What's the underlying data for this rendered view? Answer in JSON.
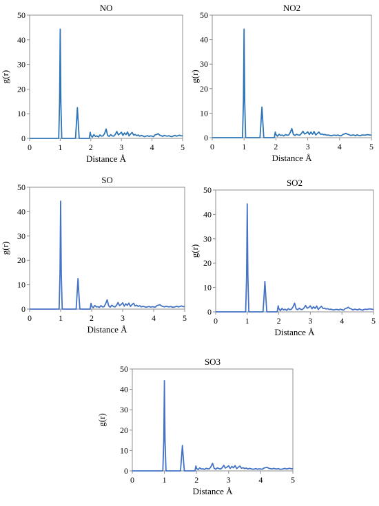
{
  "chart_data": [
    {
      "type": "line",
      "title": "NO",
      "xlabel": "Distance Å",
      "ylabel": "g(r)",
      "xlim": [
        0,
        5
      ],
      "ylim": [
        0,
        50
      ],
      "xticks": [
        "0",
        "1",
        "2",
        "3",
        "4",
        "5"
      ],
      "yticks": [
        "0",
        "10",
        "20",
        "30",
        "40",
        "50"
      ],
      "color": "#2e75b6",
      "x": [
        0,
        0.95,
        0.98,
        1.0,
        1.02,
        1.05,
        1.5,
        1.53,
        1.56,
        1.59,
        1.62,
        1.95,
        1.98,
        2.0,
        2.05,
        2.1,
        2.15,
        2.2,
        2.25,
        2.3,
        2.35,
        2.4,
        2.45,
        2.5,
        2.55,
        2.6,
        2.65,
        2.7,
        2.75,
        2.8,
        2.85,
        2.9,
        2.95,
        3.0,
        3.05,
        3.1,
        3.15,
        3.2,
        3.25,
        3.3,
        3.35,
        3.4,
        3.45,
        3.5,
        3.55,
        3.6,
        3.65,
        3.7,
        3.75,
        3.8,
        3.85,
        3.9,
        3.95,
        4.0,
        4.05,
        4.1,
        4.15,
        4.2,
        4.25,
        4.3,
        4.35,
        4.4,
        4.45,
        4.5,
        4.55,
        4.6,
        4.65,
        4.7,
        4.75,
        4.8,
        4.85,
        4.9,
        4.95,
        5.0
      ],
      "y": [
        0,
        0,
        15,
        44.3,
        15,
        0,
        0,
        6,
        12.5,
        6,
        0,
        0,
        2.5,
        1.2,
        0.5,
        1.5,
        0.8,
        1.0,
        0.6,
        1.4,
        0.9,
        1.0,
        2.0,
        3.8,
        1.2,
        0.8,
        1.5,
        1.0,
        0.9,
        1.6,
        2.8,
        1.4,
        1.9,
        2.5,
        1.2,
        2.2,
        1.5,
        2.6,
        1.0,
        1.8,
        2.4,
        1.3,
        1.6,
        1.1,
        1.4,
        0.9,
        1.2,
        1.0,
        0.7,
        0.9,
        1.1,
        0.8,
        1.0,
        0.9,
        0.7,
        1.4,
        1.6,
        1.9,
        1.3,
        1.1,
        0.8,
        1.2,
        1.0,
        0.9,
        1.1,
        0.8,
        0.7,
        1.0,
        1.2,
        0.9,
        1.1,
        1.3,
        1.0,
        1.1
      ]
    },
    {
      "type": "line",
      "title": "NO2",
      "xlabel": "Distance Å",
      "ylabel": "g(r)",
      "xlim": [
        0,
        5
      ],
      "ylim": [
        0,
        50
      ],
      "xticks": [
        "0",
        "1",
        "2",
        "3",
        "4",
        "5"
      ],
      "yticks": [
        "0",
        "10",
        "20",
        "30",
        "40",
        "50"
      ],
      "color": "#2e75b6",
      "x": [
        0,
        0.95,
        0.98,
        1.0,
        1.02,
        1.05,
        1.5,
        1.53,
        1.56,
        1.59,
        1.62,
        1.95,
        1.98,
        2.0,
        2.05,
        2.1,
        2.15,
        2.2,
        2.25,
        2.3,
        2.35,
        2.4,
        2.45,
        2.5,
        2.55,
        2.6,
        2.65,
        2.7,
        2.75,
        2.8,
        2.85,
        2.9,
        2.95,
        3.0,
        3.05,
        3.1,
        3.15,
        3.2,
        3.25,
        3.3,
        3.35,
        3.4,
        3.45,
        3.5,
        3.55,
        3.6,
        3.65,
        3.7,
        3.75,
        3.8,
        3.85,
        3.9,
        3.95,
        4.0,
        4.05,
        4.1,
        4.15,
        4.2,
        4.25,
        4.3,
        4.35,
        4.4,
        4.45,
        4.5,
        4.55,
        4.6,
        4.65,
        4.7,
        4.75,
        4.8,
        4.85,
        4.9,
        4.95,
        5.0
      ],
      "y": [
        0,
        0,
        15,
        44.3,
        15,
        0,
        0,
        6,
        12.5,
        6,
        0,
        0,
        2.3,
        1.3,
        0.6,
        1.4,
        0.9,
        1.1,
        0.7,
        1.3,
        1.0,
        1.1,
        2.1,
        3.7,
        1.3,
        0.9,
        1.4,
        1.1,
        1.0,
        1.7,
        2.6,
        1.5,
        1.8,
        2.4,
        1.3,
        2.3,
        1.4,
        2.5,
        1.1,
        1.7,
        2.3,
        1.4,
        1.5,
        1.2,
        1.3,
        1.0,
        1.1,
        0.9,
        0.8,
        1.0,
        1.0,
        0.9,
        1.1,
        0.8,
        0.8,
        1.3,
        1.5,
        1.8,
        1.4,
        1.2,
        0.9,
        1.1,
        1.1,
        0.8,
        1.2,
        0.9,
        0.8,
        1.1,
        1.1,
        1.0,
        1.2,
        1.2,
        1.1,
        1.0
      ]
    },
    {
      "type": "line",
      "title": "SO",
      "xlabel": "Distance Å",
      "ylabel": "g(r)",
      "xlim": [
        0,
        5
      ],
      "ylim": [
        0,
        50
      ],
      "xticks": [
        "0",
        "1",
        "2",
        "3",
        "4",
        "5"
      ],
      "yticks": [
        "0",
        "10",
        "20",
        "30",
        "40",
        "50"
      ],
      "color": "#4472c4",
      "x": [
        0,
        0.95,
        0.98,
        1.0,
        1.02,
        1.05,
        1.5,
        1.53,
        1.56,
        1.59,
        1.62,
        1.95,
        1.98,
        2.0,
        2.05,
        2.1,
        2.15,
        2.2,
        2.25,
        2.3,
        2.35,
        2.4,
        2.45,
        2.5,
        2.55,
        2.6,
        2.65,
        2.7,
        2.75,
        2.8,
        2.85,
        2.9,
        2.95,
        3.0,
        3.05,
        3.1,
        3.15,
        3.2,
        3.25,
        3.3,
        3.35,
        3.4,
        3.45,
        3.5,
        3.55,
        3.6,
        3.65,
        3.7,
        3.75,
        3.8,
        3.85,
        3.9,
        3.95,
        4.0,
        4.05,
        4.1,
        4.15,
        4.2,
        4.25,
        4.3,
        4.35,
        4.4,
        4.45,
        4.5,
        4.55,
        4.6,
        4.65,
        4.7,
        4.75,
        4.8,
        4.85,
        4.9,
        4.95,
        5.0
      ],
      "y": [
        0,
        0,
        15,
        44.3,
        15,
        0,
        0,
        6,
        12.5,
        6,
        0,
        0,
        2.4,
        1.2,
        0.6,
        1.5,
        0.9,
        1.0,
        0.7,
        1.4,
        0.9,
        1.0,
        2.2,
        3.8,
        1.3,
        0.8,
        1.6,
        1.1,
        0.9,
        1.5,
        2.7,
        1.4,
        1.9,
        2.6,
        1.2,
        2.2,
        1.5,
        2.5,
        1.1,
        1.8,
        2.4,
        1.3,
        1.6,
        1.1,
        1.4,
        0.9,
        1.2,
        1.0,
        0.8,
        0.9,
        1.1,
        0.8,
        1.0,
        0.9,
        0.8,
        1.4,
        1.6,
        1.8,
        1.3,
        1.1,
        0.9,
        1.2,
        1.0,
        0.9,
        1.1,
        0.8,
        0.8,
        1.0,
        1.2,
        0.9,
        1.1,
        1.3,
        1.0,
        1.1
      ]
    },
    {
      "type": "line",
      "title": "SO2",
      "xlabel": "Distance Å",
      "ylabel": "g(r)",
      "xlim": [
        0,
        5
      ],
      "ylim": [
        0,
        50
      ],
      "xticks": [
        "0",
        "1",
        "2",
        "3",
        "4",
        "5"
      ],
      "yticks": [
        "0",
        "10",
        "20",
        "30",
        "40",
        "50"
      ],
      "color": "#4472c4",
      "x": [
        0,
        0.95,
        0.98,
        1.0,
        1.02,
        1.05,
        1.5,
        1.53,
        1.56,
        1.59,
        1.62,
        1.95,
        1.98,
        2.0,
        2.05,
        2.1,
        2.15,
        2.2,
        2.25,
        2.3,
        2.35,
        2.4,
        2.45,
        2.5,
        2.55,
        2.6,
        2.65,
        2.7,
        2.75,
        2.8,
        2.85,
        2.9,
        2.95,
        3.0,
        3.05,
        3.1,
        3.15,
        3.2,
        3.25,
        3.3,
        3.35,
        3.4,
        3.45,
        3.5,
        3.55,
        3.6,
        3.65,
        3.7,
        3.75,
        3.8,
        3.85,
        3.9,
        3.95,
        4.0,
        4.05,
        4.1,
        4.15,
        4.2,
        4.25,
        4.3,
        4.35,
        4.4,
        4.45,
        4.5,
        4.55,
        4.6,
        4.65,
        4.7,
        4.75,
        4.8,
        4.85,
        4.9,
        4.95,
        5.0
      ],
      "y": [
        0,
        0,
        15,
        44.3,
        15,
        0,
        0,
        6,
        12.5,
        6,
        0,
        0,
        2.5,
        1.3,
        0.5,
        1.4,
        0.8,
        1.1,
        0.6,
        1.3,
        0.9,
        1.1,
        2.0,
        3.6,
        1.2,
        0.9,
        1.5,
        1.0,
        1.0,
        1.6,
        2.6,
        1.5,
        1.8,
        2.5,
        1.3,
        2.1,
        1.4,
        2.4,
        1.0,
        1.7,
        2.3,
        1.4,
        1.5,
        1.2,
        1.3,
        1.0,
        1.1,
        0.9,
        0.8,
        1.0,
        1.0,
        0.8,
        1.1,
        0.9,
        0.7,
        1.3,
        1.5,
        1.9,
        1.4,
        1.2,
        0.8,
        1.1,
        1.0,
        0.8,
        1.2,
        0.9,
        0.7,
        1.0,
        1.1,
        1.0,
        1.2,
        1.2,
        1.1,
        1.0
      ]
    },
    {
      "type": "line",
      "title": "SO3",
      "xlabel": "Distance Å",
      "ylabel": "g(r)",
      "xlim": [
        0,
        5
      ],
      "ylim": [
        0,
        50
      ],
      "xticks": [
        "0",
        "1",
        "2",
        "3",
        "4",
        "5"
      ],
      "yticks": [
        "0",
        "10",
        "20",
        "30",
        "40",
        "50"
      ],
      "color": "#4472c4",
      "x": [
        0,
        0.95,
        0.98,
        1.0,
        1.02,
        1.05,
        1.5,
        1.53,
        1.56,
        1.59,
        1.62,
        1.95,
        1.98,
        2.0,
        2.05,
        2.1,
        2.15,
        2.2,
        2.25,
        2.3,
        2.35,
        2.4,
        2.45,
        2.5,
        2.55,
        2.6,
        2.65,
        2.7,
        2.75,
        2.8,
        2.85,
        2.9,
        2.95,
        3.0,
        3.05,
        3.1,
        3.15,
        3.2,
        3.25,
        3.3,
        3.35,
        3.4,
        3.45,
        3.5,
        3.55,
        3.6,
        3.65,
        3.7,
        3.75,
        3.8,
        3.85,
        3.9,
        3.95,
        4.0,
        4.05,
        4.1,
        4.15,
        4.2,
        4.25,
        4.3,
        4.35,
        4.4,
        4.45,
        4.5,
        4.55,
        4.6,
        4.65,
        4.7,
        4.75,
        4.8,
        4.85,
        4.9,
        4.95,
        5.0
      ],
      "y": [
        0,
        0,
        15,
        44.3,
        15,
        0,
        0,
        6,
        12.5,
        6,
        0,
        0,
        2.4,
        1.2,
        0.6,
        1.5,
        0.9,
        1.0,
        0.7,
        1.3,
        1.0,
        1.0,
        2.1,
        3.7,
        1.3,
        0.8,
        1.5,
        1.1,
        0.9,
        1.6,
        2.7,
        1.4,
        1.9,
        2.5,
        1.2,
        2.2,
        1.5,
        2.6,
        1.1,
        1.8,
        2.4,
        1.3,
        1.6,
        1.1,
        1.4,
        0.9,
        1.2,
        1.0,
        0.8,
        0.9,
        1.1,
        0.8,
        1.0,
        0.9,
        0.8,
        1.4,
        1.6,
        1.8,
        1.3,
        1.1,
        0.9,
        1.2,
        1.0,
        0.9,
        1.1,
        0.8,
        0.8,
        1.0,
        1.2,
        0.9,
        1.1,
        1.3,
        1.0,
        1.1
      ]
    }
  ]
}
